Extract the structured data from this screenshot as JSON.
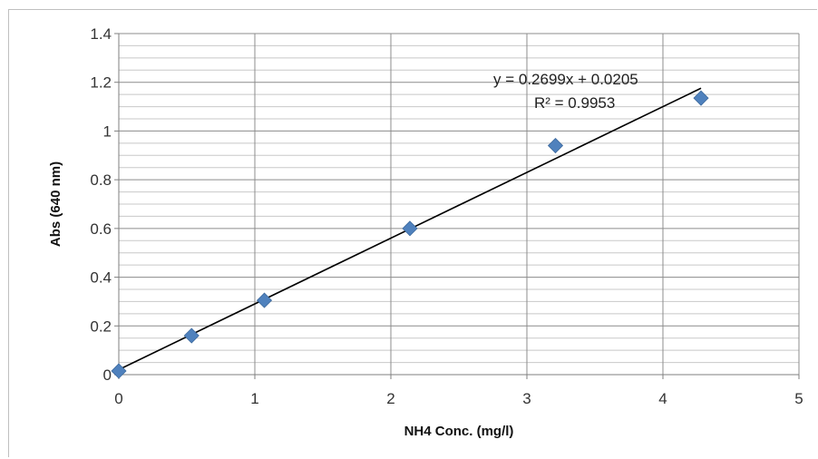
{
  "chart_data": {
    "type": "scatter",
    "xlabel": "NH4 Conc. (mg/l)",
    "ylabel": "Abs (640 nm)",
    "xlim": [
      0,
      5
    ],
    "ylim": [
      0,
      1.4
    ],
    "x_ticks": [
      "0",
      "1",
      "2",
      "3",
      "4",
      "5"
    ],
    "y_ticks": [
      "0",
      "0.2",
      "0.4",
      "0.6",
      "0.8",
      "1",
      "1.2",
      "1.4"
    ],
    "grid": true,
    "series": [
      {
        "x": [
          0,
          0.535,
          1.07,
          2.14,
          3.21,
          4.28
        ],
        "y": [
          0.015,
          0.16,
          0.305,
          0.6,
          0.94,
          1.135
        ],
        "color": "#4f81bd",
        "marker": "diamond"
      }
    ],
    "trendline": {
      "slope": 0.2699,
      "intercept": 0.0205,
      "x_range": [
        0,
        4.28
      ],
      "color": "#000000",
      "equation_label": "y = 0.2699x + 0.0205",
      "r2_label": "R² = 0.9953"
    }
  }
}
